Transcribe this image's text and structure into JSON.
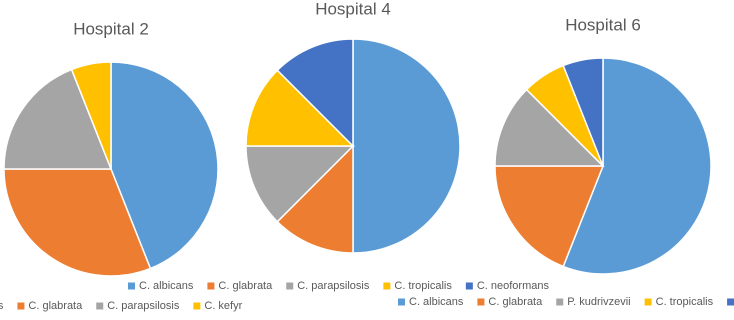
{
  "chart_data": [
    {
      "type": "pie",
      "title": "Hospital 2",
      "categories": [
        "C. albicans",
        "C. glabrata",
        "C. parapsilosis",
        "C. kefyr"
      ],
      "values": [
        44,
        31,
        19,
        6
      ],
      "colors": [
        "#5b9bd5",
        "#ed7d31",
        "#a5a5a5",
        "#ffc000"
      ]
    },
    {
      "type": "pie",
      "title": "Hospital 4",
      "categories": [
        "C. albicans",
        "C. glabrata",
        "C. parapsilosis",
        "C. tropicalis",
        "C. neoformans"
      ],
      "values": [
        50,
        12.5,
        12.5,
        12.5,
        12.5
      ],
      "colors": [
        "#5b9bd5",
        "#ed7d31",
        "#a5a5a5",
        "#ffc000",
        "#4472c4"
      ]
    },
    {
      "type": "pie",
      "title": "Hospital 6",
      "categories": [
        "C. albicans",
        "C. glabrata",
        "P. kudrivzevii",
        "C. tropicalis",
        "C. neoformans"
      ],
      "values": [
        56,
        19,
        12.5,
        6.5,
        6
      ],
      "colors": [
        "#5b9bd5",
        "#ed7d31",
        "#a5a5a5",
        "#ffc000",
        "#4472c4"
      ]
    }
  ]
}
